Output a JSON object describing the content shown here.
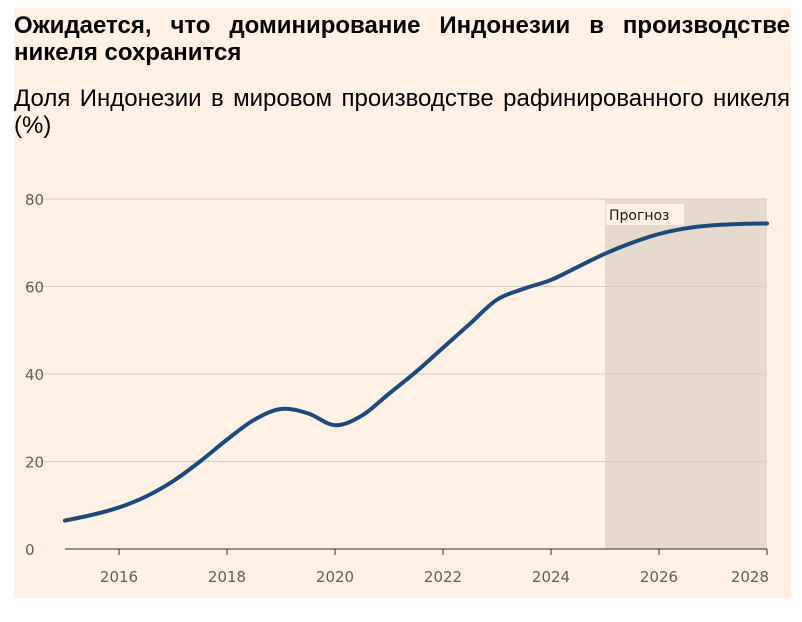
{
  "header": {
    "title": "Ожидается, что доминирование Индонезии в производстве никеля сохранится",
    "subtitle": "Доля Индонезии в мировом производстве рафинированного никеля (%)"
  },
  "chart_data": {
    "type": "line",
    "title": "Ожидается, что доминирование Индонезии в производстве никеля сохранится",
    "subtitle": "Доля Индонезии в мировом производстве рафинированного никеля (%)",
    "xlabel": "",
    "ylabel": "",
    "xlim": [
      2015,
      2028
    ],
    "ylim": [
      0,
      80
    ],
    "x_ticks": [
      2016,
      2018,
      2020,
      2022,
      2024,
      2026,
      2028
    ],
    "y_ticks": [
      0,
      20,
      40,
      60,
      80
    ],
    "grid": true,
    "forecast": {
      "label": "Прогноз",
      "from": 2025,
      "to": 2028
    },
    "series": [
      {
        "color": "#1d4a7c",
        "points": [
          [
            2015.0,
            6.5
          ],
          [
            2015.5,
            7.8
          ],
          [
            2016.0,
            9.5
          ],
          [
            2016.5,
            12.0
          ],
          [
            2017.0,
            15.5
          ],
          [
            2017.5,
            20.0
          ],
          [
            2018.0,
            25.0
          ],
          [
            2018.5,
            29.5
          ],
          [
            2019.0,
            32.0
          ],
          [
            2019.5,
            31.0
          ],
          [
            2020.0,
            28.3
          ],
          [
            2020.5,
            30.5
          ],
          [
            2021.0,
            35.5
          ],
          [
            2021.5,
            40.5
          ],
          [
            2022.0,
            46.0
          ],
          [
            2022.5,
            51.5
          ],
          [
            2023.0,
            57.0
          ],
          [
            2023.5,
            59.5
          ],
          [
            2024.0,
            61.5
          ],
          [
            2024.5,
            64.5
          ],
          [
            2025.0,
            67.5
          ],
          [
            2025.5,
            70.0
          ],
          [
            2026.0,
            72.0
          ],
          [
            2026.5,
            73.3
          ],
          [
            2027.0,
            74.0
          ],
          [
            2027.5,
            74.3
          ],
          [
            2028.0,
            74.4
          ]
        ]
      }
    ]
  }
}
